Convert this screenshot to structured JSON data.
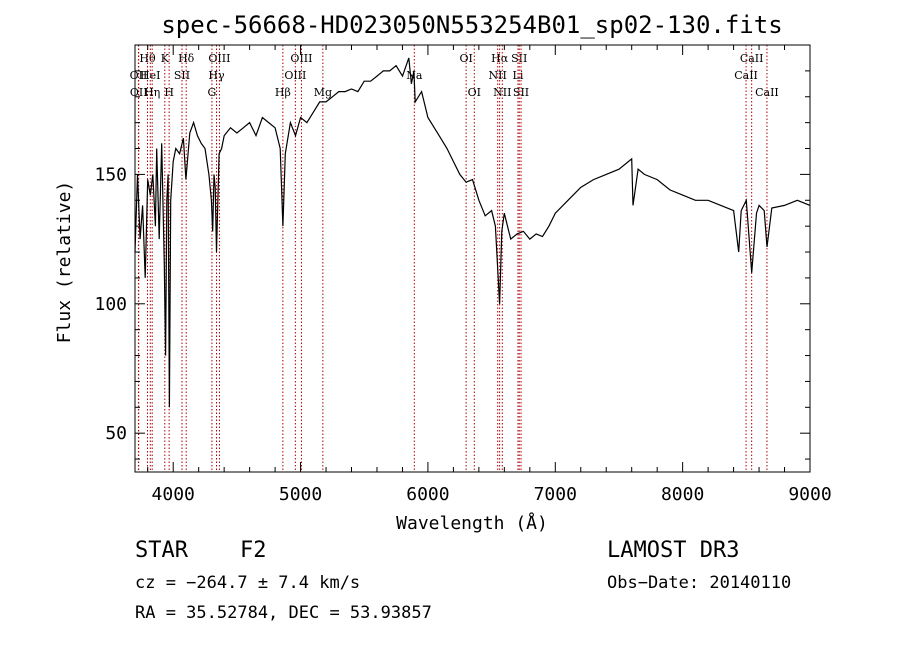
{
  "chart_data": {
    "type": "line",
    "title": "spec-56668-HD023050N553254B01_sp02-130.fits",
    "xlabel": "Wavelength (Å)",
    "ylabel": "Flux (relative)",
    "xlim": [
      3700,
      9000
    ],
    "ylim": [
      35,
      200
    ],
    "xticks": [
      4000,
      5000,
      6000,
      7000,
      8000,
      9000
    ],
    "yticks": [
      50,
      100,
      150
    ],
    "grid": false,
    "series": [
      {
        "color": "#000000",
        "x": [
          3700,
          3720,
          3740,
          3760,
          3780,
          3800,
          3820,
          3840,
          3860,
          3870,
          3890,
          3910,
          3930,
          3940,
          3950,
          3960,
          3970,
          3980,
          4000,
          4020,
          4050,
          4080,
          4100,
          4130,
          4160,
          4190,
          4220,
          4250,
          4280,
          4300,
          4310,
          4320,
          4330,
          4340,
          4360,
          4380,
          4400,
          4450,
          4500,
          4550,
          4600,
          4650,
          4700,
          4750,
          4800,
          4840,
          4861,
          4880,
          4920,
          4960,
          5000,
          5050,
          5100,
          5150,
          5200,
          5250,
          5300,
          5350,
          5400,
          5450,
          5500,
          5550,
          5600,
          5650,
          5700,
          5750,
          5800,
          5850,
          5870,
          5890,
          5900,
          5950,
          6000,
          6050,
          6100,
          6150,
          6200,
          6250,
          6300,
          6350,
          6400,
          6450,
          6500,
          6530,
          6563,
          6580,
          6600,
          6650,
          6700,
          6750,
          6800,
          6850,
          6900,
          6950,
          7000,
          7100,
          7200,
          7300,
          7400,
          7500,
          7600,
          7610,
          7650,
          7700,
          7800,
          7900,
          8000,
          8100,
          8200,
          8300,
          8400,
          8440,
          8460,
          8500,
          8542,
          8580,
          8600,
          8640,
          8662,
          8700,
          8800,
          8900,
          9000
        ],
        "y": [
          120,
          150,
          125,
          138,
          110,
          148,
          142,
          150,
          130,
          160,
          125,
          162,
          115,
          80,
          140,
          150,
          60,
          140,
          155,
          160,
          158,
          164,
          148,
          166,
          170,
          165,
          162,
          160,
          150,
          140,
          128,
          150,
          145,
          120,
          158,
          160,
          165,
          168,
          166,
          168,
          170,
          165,
          172,
          170,
          168,
          160,
          130,
          158,
          170,
          165,
          172,
          170,
          174,
          178,
          178,
          180,
          182,
          182,
          183,
          182,
          186,
          186,
          188,
          190,
          190,
          192,
          188,
          195,
          185,
          190,
          178,
          182,
          172,
          168,
          164,
          160,
          155,
          150,
          147,
          148,
          140,
          134,
          136,
          130,
          100,
          128,
          135,
          125,
          127,
          128,
          125,
          127,
          126,
          130,
          135,
          140,
          145,
          148,
          150,
          152,
          156,
          138,
          152,
          150,
          148,
          144,
          142,
          140,
          140,
          138,
          136,
          120,
          136,
          140,
          112,
          135,
          138,
          136,
          122,
          137,
          138,
          140,
          138
        ]
      }
    ],
    "line_markers": [
      {
        "label": "OII",
        "x": 3727,
        "row": 2
      },
      {
        "label": "OII",
        "x": 3729,
        "row": 3
      },
      {
        "label": "Hθ",
        "x": 3798,
        "row": 1
      },
      {
        "label": "HeI",
        "x": 3820,
        "row": 2
      },
      {
        "label": "Hη",
        "x": 3835,
        "row": 3
      },
      {
        "label": "K",
        "x": 3934,
        "row": 1
      },
      {
        "label": "SII",
        "x": 4069,
        "row": 2
      },
      {
        "label": "H",
        "x": 3968,
        "row": 3
      },
      {
        "label": "Hδ",
        "x": 4102,
        "row": 1
      },
      {
        "label": "OIII",
        "x": 4363,
        "row": 1
      },
      {
        "label": "Hγ",
        "x": 4340,
        "row": 2
      },
      {
        "label": "G",
        "x": 4304,
        "row": 3
      },
      {
        "label": "Hβ",
        "x": 4861,
        "row": 3
      },
      {
        "label": "OIII",
        "x": 5007,
        "row": 1
      },
      {
        "label": "OIII",
        "x": 4959,
        "row": 2
      },
      {
        "label": "Mg",
        "x": 5175,
        "row": 3
      },
      {
        "label": "Na",
        "x": 5893,
        "row": 2
      },
      {
        "label": "OI",
        "x": 6300,
        "row": 1
      },
      {
        "label": "OI",
        "x": 6364,
        "row": 3
      },
      {
        "label": "Hα",
        "x": 6563,
        "row": 1
      },
      {
        "label": "NII",
        "x": 6548,
        "row": 2
      },
      {
        "label": "NII",
        "x": 6584,
        "row": 3
      },
      {
        "label": "SII",
        "x": 6717,
        "row": 1
      },
      {
        "label": "Li",
        "x": 6707,
        "row": 2
      },
      {
        "label": "SII",
        "x": 6731,
        "row": 3
      },
      {
        "label": "CaII",
        "x": 8542,
        "row": 1
      },
      {
        "label": "CaII",
        "x": 8498,
        "row": 2
      },
      {
        "label": "CaII",
        "x": 8662,
        "row": 3
      }
    ]
  },
  "info": {
    "class_label": "STAR",
    "subclass": "F2",
    "survey": "LAMOST DR3",
    "cz": "cz = −264.7 ± 7.4 km/s",
    "obs_date": "Obs−Date: 20140110",
    "coords": "RA =  35.52784, DEC =  53.93857"
  }
}
